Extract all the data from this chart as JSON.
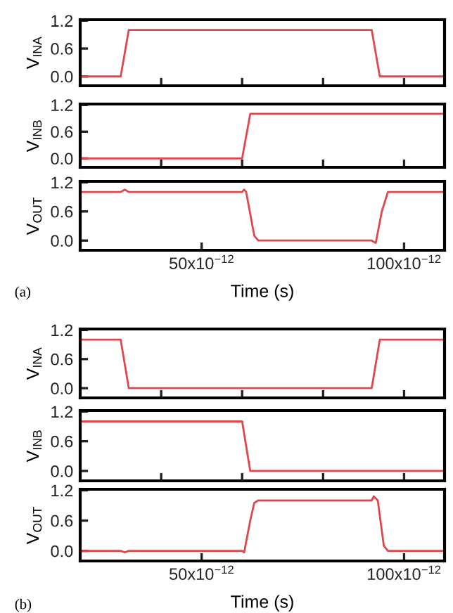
{
  "chart_data": [
    {
      "type": "line",
      "ylabel": "V$_{INA}$",
      "xlim": [
        2e-11,
        1.1e-10
      ],
      "ylim": [
        -0.2,
        1.22
      ],
      "yticks": [
        {
          "value": 0,
          "label": "0.0"
        },
        {
          "value": 0.6,
          "label": "0.6"
        },
        {
          "value": 1.2,
          "label": "1.2"
        }
      ],
      "xticks": [
        {
          "value": 4e-11,
          "label": null
        },
        {
          "value": 6e-11,
          "label": null
        },
        {
          "value": 8e-11,
          "label": null
        },
        {
          "value": 1e-10,
          "label": null
        }
      ],
      "tick_labels": "y",
      "grid": false,
      "series": [
        {
          "color": "#e0474c",
          "x": [
            2e-11,
            3e-11,
            3.2e-11,
            9.2e-11,
            9.4e-11,
            1.1e-10
          ],
          "values": [
            0,
            0,
            1,
            1,
            0,
            0
          ]
        }
      ]
    },
    {
      "type": "line",
      "ylabel": "V$_{INB}$",
      "xlim": [
        2e-11,
        1.1e-10
      ],
      "ylim": [
        -0.2,
        1.22
      ],
      "yticks": [
        {
          "value": 0,
          "label": "0.0"
        },
        {
          "value": 0.6,
          "label": "0.6"
        },
        {
          "value": 1.2,
          "label": "1.2"
        }
      ],
      "xticks": [
        {
          "value": 4e-11,
          "label": null
        },
        {
          "value": 6e-11,
          "label": null
        },
        {
          "value": 8e-11,
          "label": null
        },
        {
          "value": 1e-10,
          "label": null
        }
      ],
      "tick_labels": "y",
      "grid": false,
      "series": [
        {
          "color": "#e0474c",
          "x": [
            2e-11,
            6e-11,
            6.2e-11,
            1.1e-10
          ],
          "values": [
            0,
            0,
            1,
            1
          ]
        }
      ]
    },
    {
      "type": "line",
      "ylabel": "V$_{OUT}$",
      "xlabel": "Time (s)",
      "annotations": [
        "(a)"
      ],
      "xlim": [
        2e-11,
        1.1e-10
      ],
      "ylim": [
        -0.2,
        1.22
      ],
      "yticks": [
        {
          "value": 0,
          "label": "0.0"
        },
        {
          "value": 0.6,
          "label": "0.6"
        },
        {
          "value": 1.2,
          "label": "1.2"
        }
      ],
      "xticks": [
        {
          "value": 5e-11,
          "label": "50x10$^{−12}$"
        },
        {
          "value": 1e-10,
          "label": "100x10$^{−12}$"
        }
      ],
      "grid": false,
      "series": [
        {
          "color": "#e0474c",
          "x": [
            2e-11,
            3e-11,
            3.1e-11,
            3.2e-11,
            6e-11,
            6.05e-11,
            6.1e-11,
            6.3e-11,
            6.4e-11,
            9.2e-11,
            9.3e-11,
            9.45e-11,
            9.6e-11,
            9.7e-11,
            1.1e-10
          ],
          "values": [
            1,
            1,
            1.05,
            1,
            1,
            1.05,
            1,
            0.1,
            0,
            0,
            -0.05,
            0.6,
            1,
            1,
            1
          ]
        }
      ]
    },
    {
      "type": "line",
      "ylabel": "V$_{INA}$",
      "xlim": [
        2e-11,
        1.1e-10
      ],
      "ylim": [
        -0.2,
        1.22
      ],
      "yticks": [
        {
          "value": 0,
          "label": "0.0"
        },
        {
          "value": 0.6,
          "label": "0.6"
        },
        {
          "value": 1.2,
          "label": "1.2"
        }
      ],
      "xticks": [
        {
          "value": 4e-11,
          "label": null
        },
        {
          "value": 6e-11,
          "label": null
        },
        {
          "value": 8e-11,
          "label": null
        },
        {
          "value": 1e-10,
          "label": null
        }
      ],
      "tick_labels": "y",
      "grid": false,
      "series": [
        {
          "color": "#e0474c",
          "x": [
            2e-11,
            3e-11,
            3.2e-11,
            9.2e-11,
            9.4e-11,
            1.1e-10
          ],
          "values": [
            1,
            1,
            0,
            0,
            1,
            1
          ]
        }
      ]
    },
    {
      "type": "line",
      "ylabel": "V$_{INB}$",
      "xlim": [
        2e-11,
        1.1e-10
      ],
      "ylim": [
        -0.2,
        1.22
      ],
      "yticks": [
        {
          "value": 0,
          "label": "0.0"
        },
        {
          "value": 0.6,
          "label": "0.6"
        },
        {
          "value": 1.2,
          "label": "1.2"
        }
      ],
      "xticks": [
        {
          "value": 4e-11,
          "label": null
        },
        {
          "value": 6e-11,
          "label": null
        },
        {
          "value": 8e-11,
          "label": null
        },
        {
          "value": 1e-10,
          "label": null
        }
      ],
      "tick_labels": "y",
      "grid": false,
      "series": [
        {
          "color": "#e0474c",
          "x": [
            2e-11,
            6e-11,
            6.2e-11,
            1.1e-10
          ],
          "values": [
            1,
            1,
            0,
            0
          ]
        }
      ]
    },
    {
      "type": "line",
      "ylabel": "V$_{OUT}$",
      "xlabel": "Time (s)",
      "annotations": [
        "(b)"
      ],
      "xlim": [
        2e-11,
        1.1e-10
      ],
      "ylim": [
        -0.2,
        1.22
      ],
      "yticks": [
        {
          "value": 0,
          "label": "0.0"
        },
        {
          "value": 0.6,
          "label": "0.6"
        },
        {
          "value": 1.2,
          "label": "1.2"
        }
      ],
      "xticks": [
        {
          "value": 5e-11,
          "label": "50x10$^{−12}$"
        },
        {
          "value": 1e-10,
          "label": "100x10$^{−12}$"
        }
      ],
      "grid": false,
      "series": [
        {
          "color": "#e0474c",
          "x": [
            2e-11,
            3e-11,
            3.1e-11,
            3.2e-11,
            6e-11,
            6.05e-11,
            6.2e-11,
            6.3e-11,
            6.4e-11,
            9.2e-11,
            9.25e-11,
            9.35e-11,
            9.5e-11,
            9.6e-11,
            1.1e-10
          ],
          "values": [
            0,
            0,
            -0.03,
            0,
            0,
            -0.03,
            0.6,
            0.95,
            1,
            1,
            1.08,
            1,
            0.1,
            0,
            0
          ]
        }
      ]
    }
  ]
}
